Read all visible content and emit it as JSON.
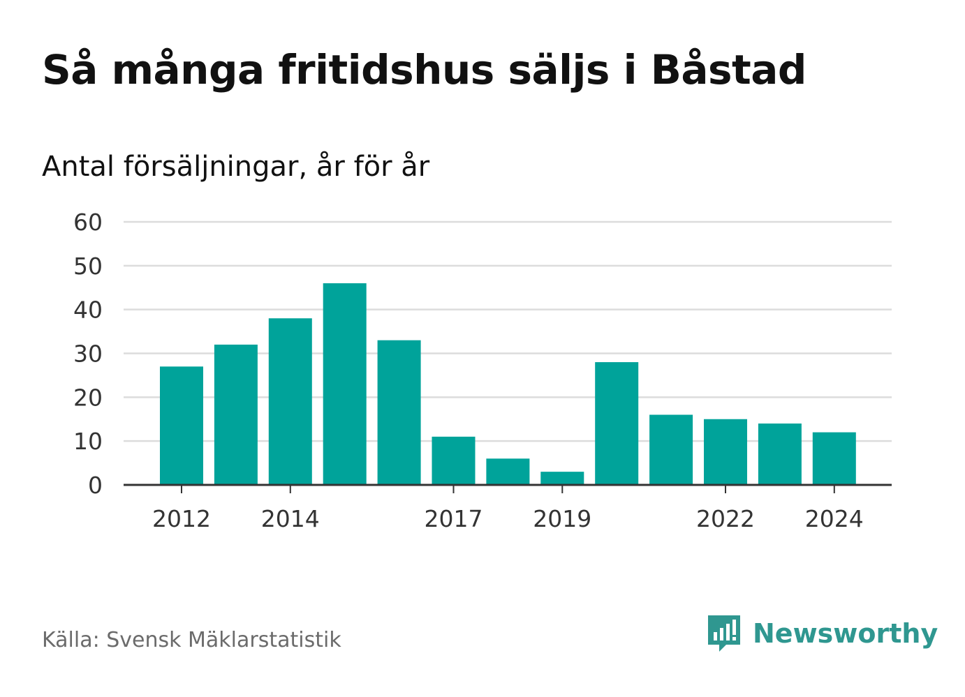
{
  "title": "Så många fritidshus säljs i Båstad",
  "subtitle": "Antal försäljningar, år för år",
  "source": "Källa: Svensk Mäklarstatistik",
  "brand": {
    "name": "Newsworthy",
    "icon": "newsworthy-logo-icon",
    "color": "#2f9790"
  },
  "chart_data": {
    "type": "bar",
    "x": [
      2012,
      2013,
      2014,
      2015,
      2016,
      2017,
      2018,
      2019,
      2020,
      2021,
      2022,
      2023,
      2024
    ],
    "values": [
      27,
      32,
      38,
      46,
      33,
      11,
      6,
      3,
      28,
      16,
      15,
      14,
      12
    ],
    "x_tick_labels": [
      "2012",
      "2014",
      "2017",
      "2019",
      "2022",
      "2024"
    ],
    "y_ticks": [
      0,
      10,
      20,
      30,
      40,
      50,
      60
    ],
    "ylim": [
      0,
      60
    ],
    "grid": true,
    "bar_color": "#00a39a"
  }
}
